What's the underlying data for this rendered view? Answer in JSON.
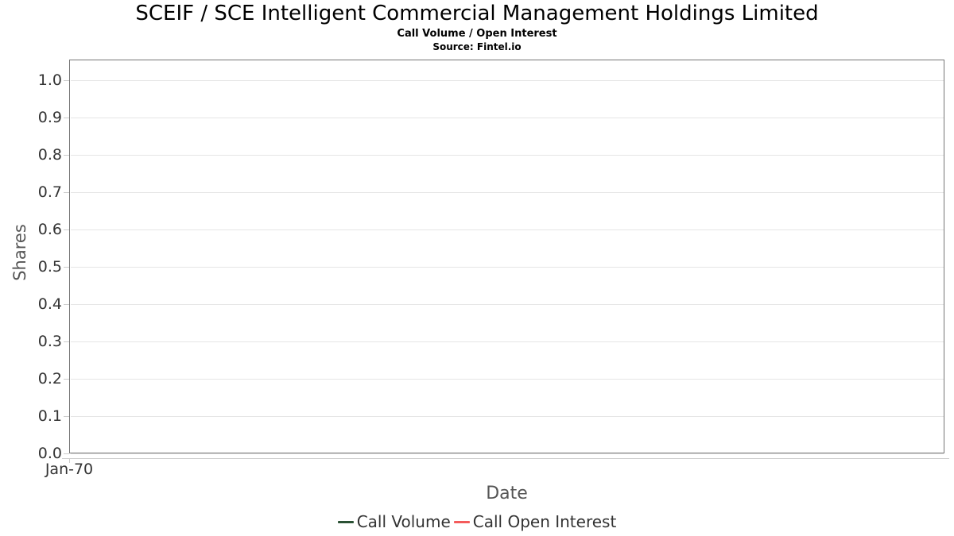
{
  "chart_data": {
    "type": "line",
    "title": "SCEIF / SCE Intelligent Commercial Management Holdings Limited",
    "subtitle": "Call Volume / Open Interest",
    "source": "Source: Fintel.io",
    "xlabel": "Date",
    "ylabel": "Shares",
    "ylim": [
      0.0,
      1.0
    ],
    "ytick_labels": [
      "1.0",
      "0.9",
      "0.8",
      "0.7",
      "0.6",
      "0.5",
      "0.4",
      "0.3",
      "0.2",
      "0.1",
      "0.0"
    ],
    "xtick_labels": [
      "Jan-70"
    ],
    "grid": true,
    "legend_position": "bottom",
    "series": [
      {
        "name": "Call Volume",
        "color": "#2a5134",
        "x": [],
        "values": []
      },
      {
        "name": "Call Open Interest",
        "color": "#f45b5b",
        "x": [],
        "values": []
      }
    ]
  },
  "colors": {
    "plot_border": "#757575",
    "gridline": "#e6e6e6",
    "axis_line": "#cccccc",
    "tick_mark": "#cccccc",
    "tick_text": "#333333",
    "axis_title_text": "#555555",
    "legend_text": "#333333",
    "title_text": "#000000"
  }
}
